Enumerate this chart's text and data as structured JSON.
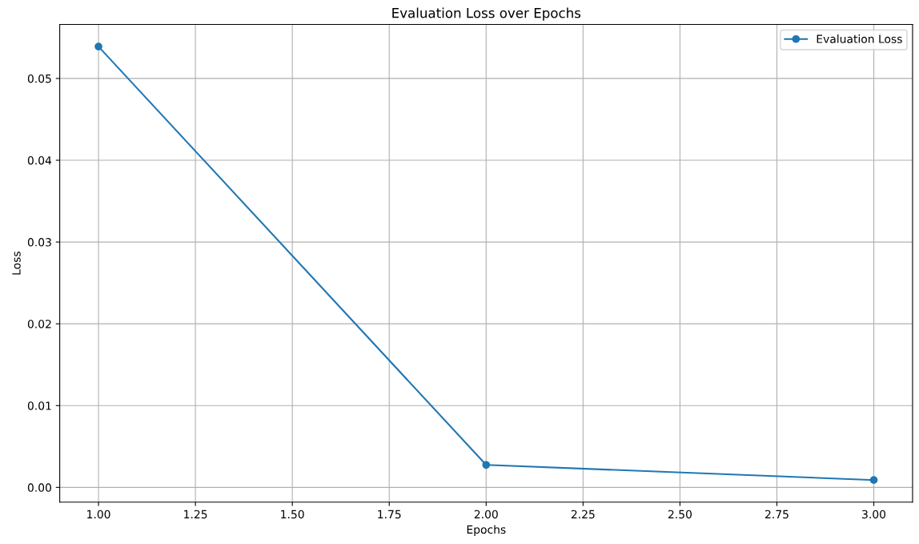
{
  "chart_data": {
    "type": "line",
    "title": "Evaluation Loss over Epochs",
    "xlabel": "Epochs",
    "ylabel": "Loss",
    "x": [
      1,
      2,
      3
    ],
    "series": [
      {
        "name": "Evaluation Loss",
        "color": "#1f77b4",
        "values": [
          0.0539,
          0.00275,
          0.0009
        ]
      }
    ],
    "xlim": [
      0.9,
      3.1
    ],
    "xticks": [
      {
        "value": 1,
        "label": "1.00"
      },
      {
        "value": 1.25,
        "label": "1.25"
      },
      {
        "value": 1.5,
        "label": "1.50"
      },
      {
        "value": 1.75,
        "label": "1.75"
      },
      {
        "value": 2,
        "label": "2.00"
      },
      {
        "value": 2.25,
        "label": "2.25"
      },
      {
        "value": 2.5,
        "label": "2.50"
      },
      {
        "value": 2.75,
        "label": "2.75"
      },
      {
        "value": 3,
        "label": "3.00"
      }
    ],
    "ylim": [
      -0.0018,
      0.0566
    ],
    "yticks": [
      {
        "value": 0,
        "label": "0.00"
      },
      {
        "value": 0.01,
        "label": "0.01"
      },
      {
        "value": 0.02,
        "label": "0.02"
      },
      {
        "value": 0.03,
        "label": "0.03"
      },
      {
        "value": 0.04,
        "label": "0.04"
      },
      {
        "value": 0.05,
        "label": "0.05"
      }
    ],
    "grid": true,
    "legend": "top right",
    "marker": "circle",
    "line_style": "solid"
  }
}
